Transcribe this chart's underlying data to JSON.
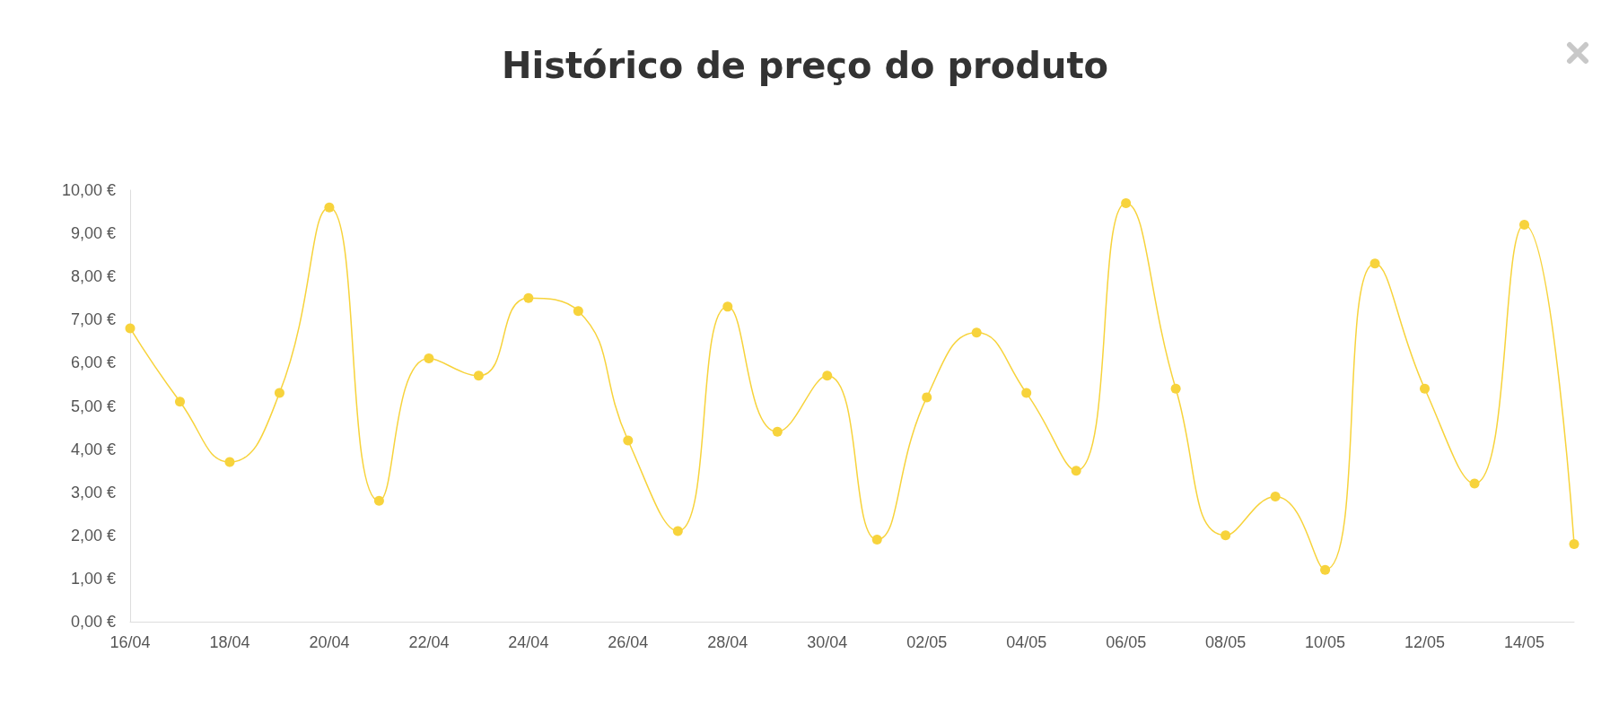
{
  "chart_data": {
    "type": "line",
    "title": "Histórico de preço do produto",
    "categories": [
      "16/04",
      null,
      "18/04",
      null,
      "20/04",
      null,
      "22/04",
      null,
      "24/04",
      null,
      "26/04",
      null,
      "28/04",
      null,
      "30/04",
      null,
      "02/05",
      null,
      "04/05",
      null,
      "06/05",
      null,
      "08/05",
      null,
      "10/05",
      null,
      "12/05",
      null,
      "14/05",
      null
    ],
    "series": [
      {
        "color": "#f7d33c",
        "values": [
          6.8,
          5.1,
          3.7,
          5.3,
          9.6,
          2.8,
          6.1,
          5.7,
          7.5,
          7.2,
          4.2,
          2.1,
          7.3,
          4.4,
          5.7,
          1.9,
          5.2,
          6.7,
          5.3,
          3.5,
          9.7,
          5.4,
          2.0,
          2.9,
          1.2,
          8.3,
          5.4,
          3.2,
          9.2,
          1.8
        ]
      }
    ],
    "ylim": [
      0,
      10
    ],
    "yticks": [
      {
        "value": 0,
        "label": "0,00 €"
      },
      {
        "value": 1,
        "label": "1,00 €"
      },
      {
        "value": 2,
        "label": "2,00 €"
      },
      {
        "value": 3,
        "label": "3,00 €"
      },
      {
        "value": 4,
        "label": "4,00 €"
      },
      {
        "value": 5,
        "label": "5,00 €"
      },
      {
        "value": 6,
        "label": "6,00 €"
      },
      {
        "value": 7,
        "label": "7,00 €"
      },
      {
        "value": 8,
        "label": "8,00 €"
      },
      {
        "value": 9,
        "label": "9,00 €"
      },
      {
        "value": 10,
        "label": "10,00 €"
      }
    ],
    "grid": false,
    "marker": "circle",
    "line_style": "solid"
  }
}
